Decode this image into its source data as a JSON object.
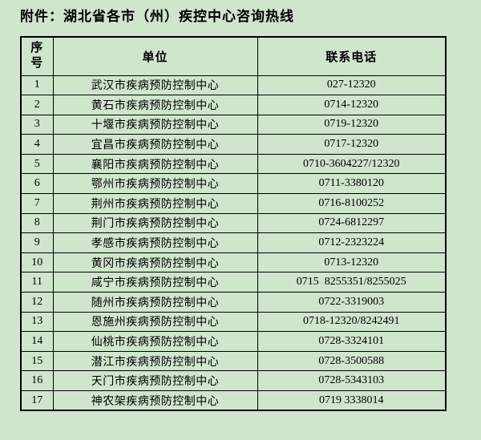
{
  "page": {
    "title": "附件：湖北省各市（州）疾控中心咨询热线",
    "background_color": "#cfe5cc",
    "text_color": "#000000",
    "border_color": "#000000"
  },
  "table": {
    "headers": {
      "index": "序号",
      "unit": "单位",
      "phone": "联系电话"
    },
    "rows": [
      {
        "index": "1",
        "unit": "武汉市疾病预防控制中心",
        "phone": "027-12320"
      },
      {
        "index": "2",
        "unit": "黄石市疾病预防控制中心",
        "phone": "0714-12320"
      },
      {
        "index": "3",
        "unit": "十堰市疾病预防控制中心",
        "phone": "0719-12320"
      },
      {
        "index": "4",
        "unit": "宜昌市疾病预防控制中心",
        "phone": "0717-12320"
      },
      {
        "index": "5",
        "unit": "襄阳市疾病预防控制中心",
        "phone": "0710-3604227/12320"
      },
      {
        "index": "6",
        "unit": "鄂州市疾病预防控制中心",
        "phone": "0711-3380120"
      },
      {
        "index": "7",
        "unit": "荆州市疾病预防控制中心",
        "phone": "0716-8100252"
      },
      {
        "index": "8",
        "unit": "荆门市疾病预防控制中心",
        "phone": "0724-6812297"
      },
      {
        "index": "9",
        "unit": "孝感市疾病预防控制中心",
        "phone": "0712-2323224"
      },
      {
        "index": "10",
        "unit": "黄冈市疾病预防控制中心",
        "phone": "0713-12320"
      },
      {
        "index": "11",
        "unit": "咸宁市疾病预防控制中心",
        "phone": "0715  8255351/8255025"
      },
      {
        "index": "12",
        "unit": "随州市疾病预防控制中心",
        "phone": "0722-3319003"
      },
      {
        "index": "13",
        "unit": "恩施州疾病预防控制中心",
        "phone": "0718-12320/8242491"
      },
      {
        "index": "14",
        "unit": "仙桃市疾病预防控制中心",
        "phone": "0728-3324101"
      },
      {
        "index": "15",
        "unit": "潜江市疾病预防控制中心",
        "phone": "0728-3500588"
      },
      {
        "index": "16",
        "unit": "天门市疾病预防控制中心",
        "phone": "0728-5343103"
      },
      {
        "index": "17",
        "unit": "神农架疾病预防控制中心",
        "phone": "0719 3338014"
      }
    ]
  }
}
